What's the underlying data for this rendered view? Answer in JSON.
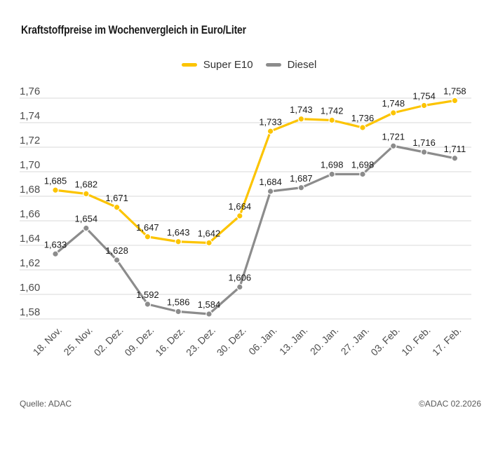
{
  "title": "Kraftstoffpreise im Wochenvergleich in Euro/Liter",
  "legend": {
    "items": [
      {
        "label": "Super E10",
        "color": "#FCC400"
      },
      {
        "label": "Diesel",
        "color": "#8C8C8C"
      }
    ]
  },
  "footer": {
    "source": "Quelle: ADAC",
    "copyright": "©ADAC 02.2026"
  },
  "colors": {
    "super_e10": "#FCC400",
    "diesel": "#8C8C8C",
    "gridline": "#d9d9d9",
    "axis_text": "#4d4d4d",
    "point_label": "#1a1a1a",
    "point_ring": "#ffffff"
  },
  "chart_data": {
    "type": "line",
    "title": "Kraftstoffpreise im Wochenvergleich in Euro/Liter",
    "categories": [
      "18. Nov.",
      "25. Nov.",
      "02. Dez.",
      "09. Dez.",
      "16. Dez.",
      "23. Dez.",
      "30. Dez.",
      "06. Jan.",
      "13. Jan.",
      "20. Jan.",
      "27. Jan.",
      "03. Feb.",
      "10. Feb.",
      "17. Feb."
    ],
    "series": [
      {
        "name": "Super E10",
        "color": "#FCC400",
        "values": [
          1.685,
          1.682,
          1.671,
          1.647,
          1.643,
          1.642,
          1.664,
          1.733,
          1.743,
          1.742,
          1.736,
          1.748,
          1.754,
          1.758
        ]
      },
      {
        "name": "Diesel",
        "color": "#8C8C8C",
        "values": [
          1.633,
          1.654,
          1.628,
          1.592,
          1.586,
          1.584,
          1.606,
          1.684,
          1.687,
          1.698,
          1.698,
          1.721,
          1.716,
          1.711
        ]
      }
    ],
    "xlabel": "",
    "ylabel": "Euro/Liter",
    "ylim": [
      1.58,
      1.76
    ],
    "ytick_step": 0.02,
    "ytick_labels": [
      "1,58",
      "1,60",
      "1,62",
      "1,64",
      "1,66",
      "1,68",
      "1,70",
      "1,72",
      "1,74",
      "1,76"
    ],
    "grid": "horizontal",
    "legend_position": "top-center",
    "decimal_format": "comma",
    "point_labels": true
  }
}
